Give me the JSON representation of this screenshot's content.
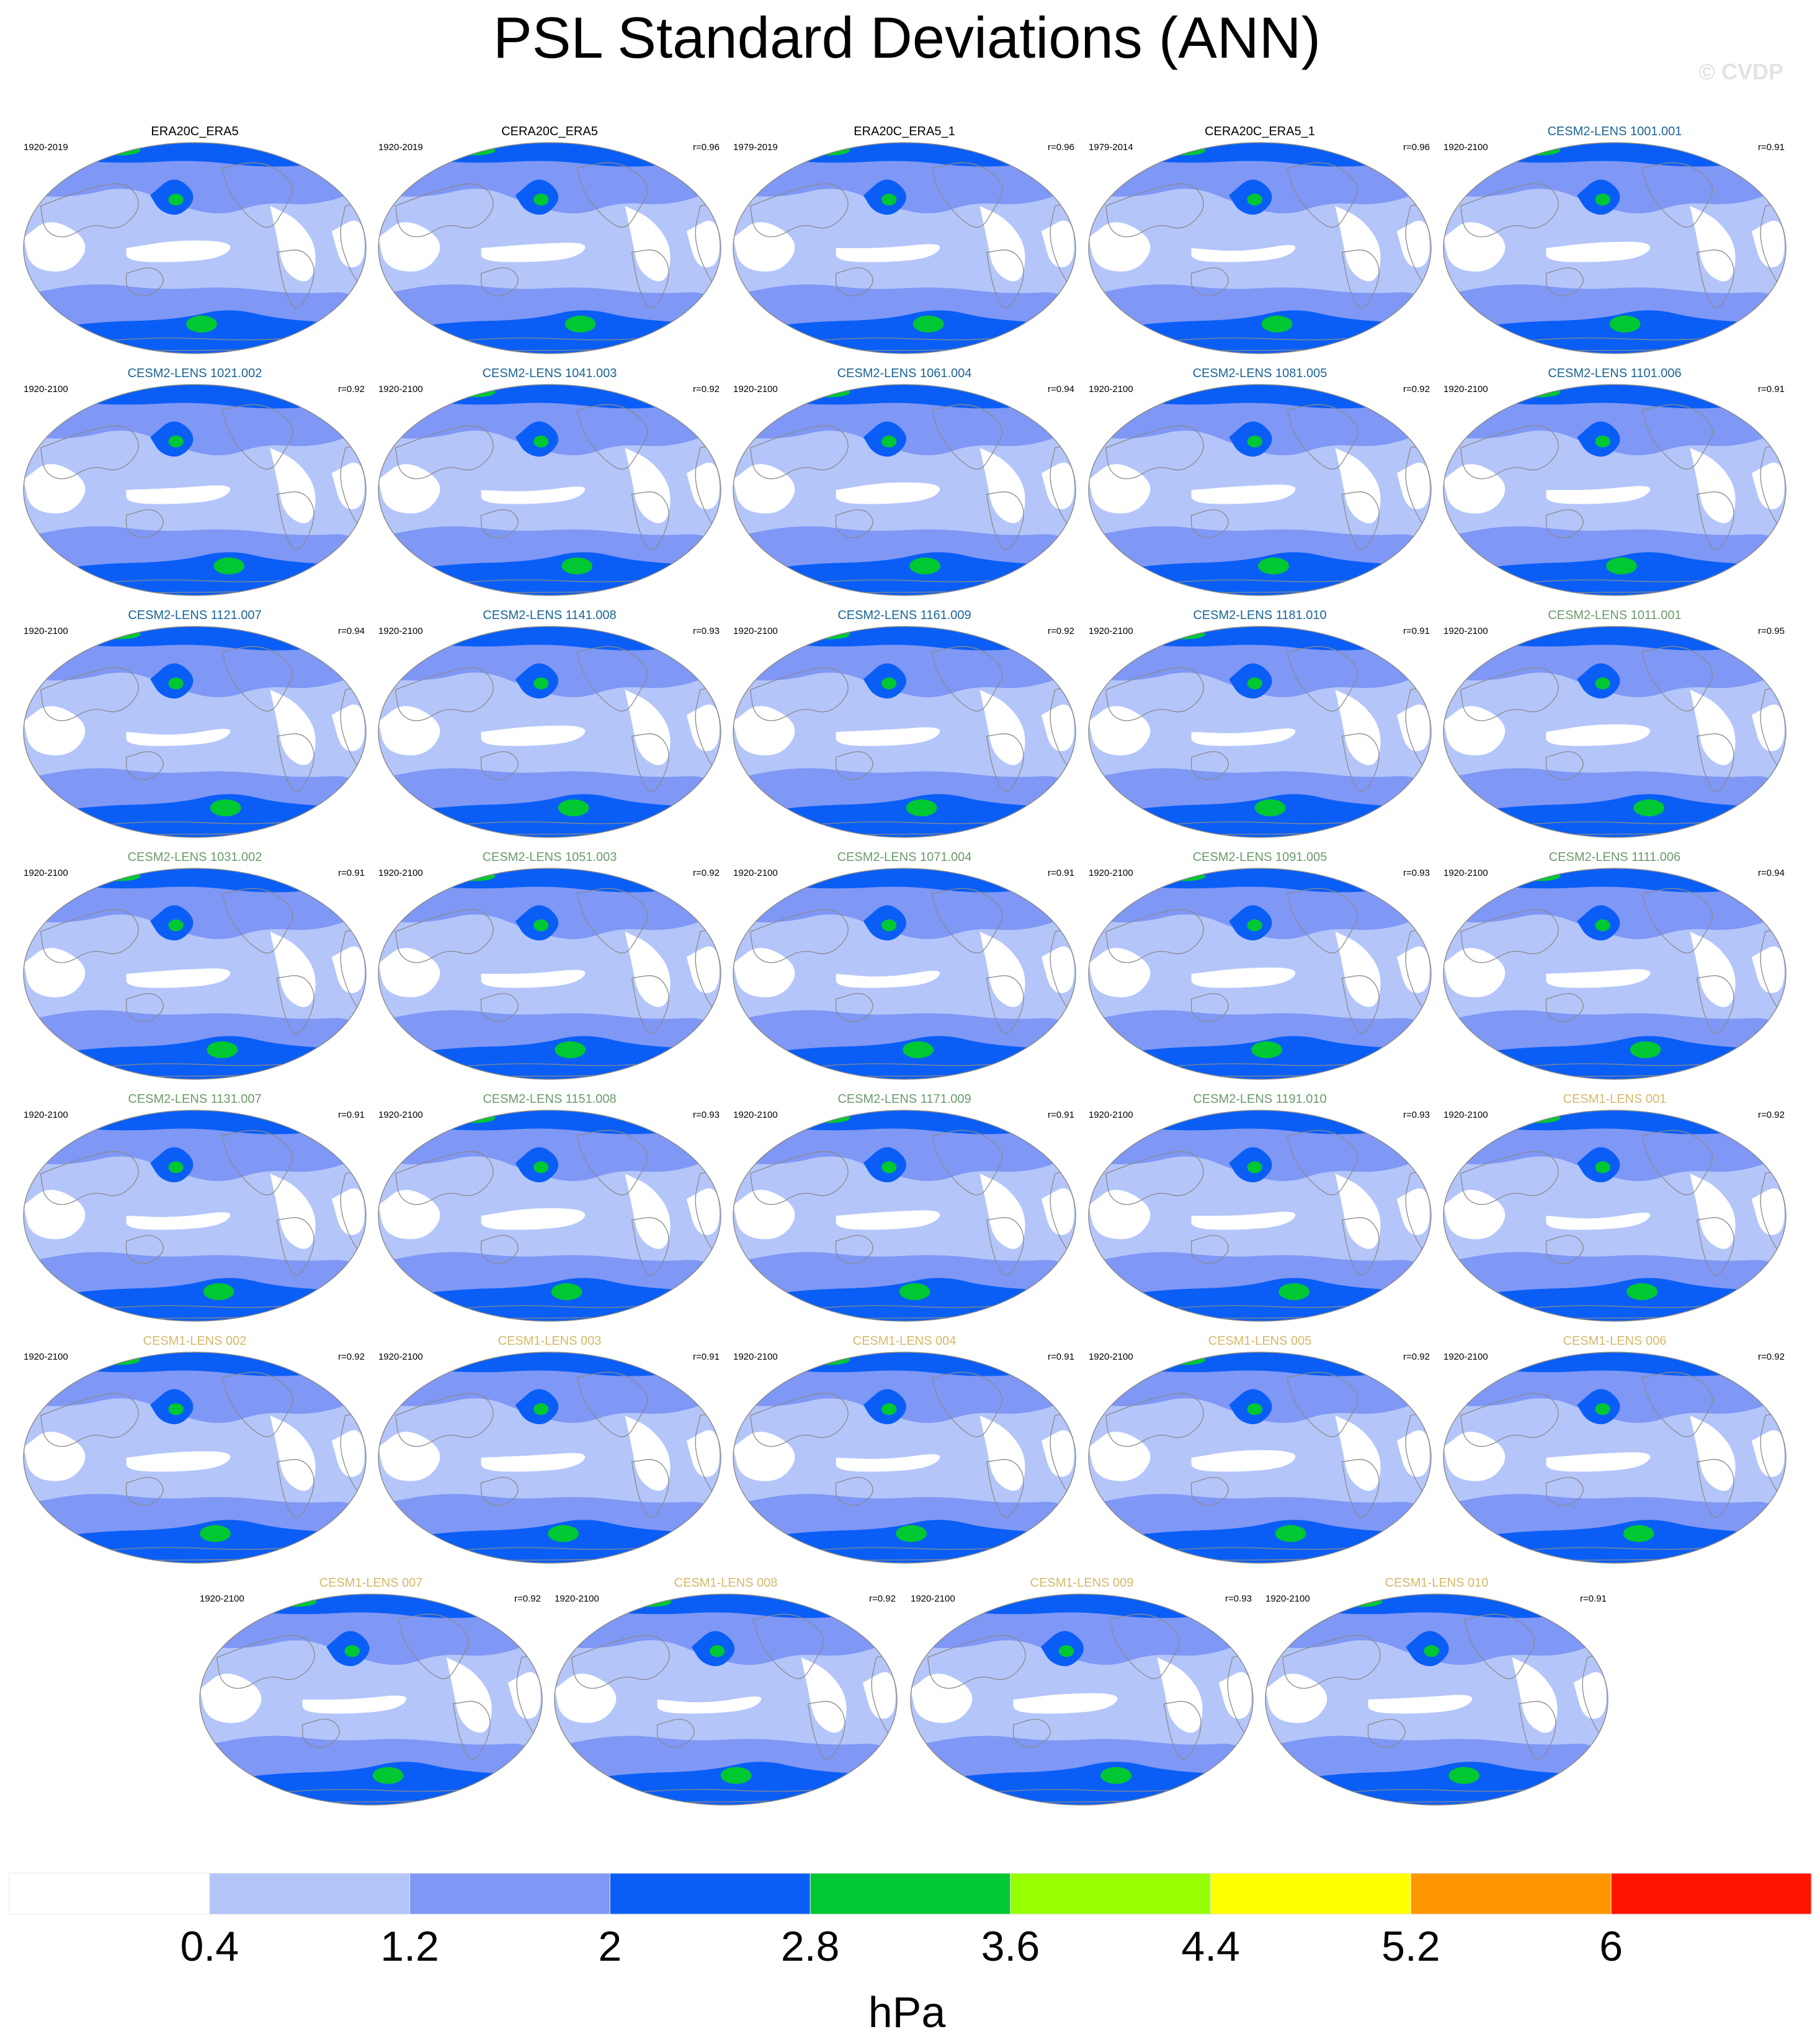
{
  "page": {
    "title": "PSL Standard Deviations (ANN)",
    "watermark": "© CVDP"
  },
  "chart_data": {
    "type": "heatmap",
    "title": "PSL Standard Deviations (ANN)",
    "projection": "robinson-centered-pacific",
    "panels": [
      {
        "title": "ERA20C_ERA5",
        "period": "1920-2019",
        "r": "",
        "title_color": "#000000"
      },
      {
        "title": "CERA20C_ERA5",
        "period": "1920-2019",
        "r": "r=0.96",
        "title_color": "#000000"
      },
      {
        "title": "ERA20C_ERA5_1",
        "period": "1979-2019",
        "r": "r=0.96",
        "title_color": "#000000"
      },
      {
        "title": "CERA20C_ERA5_1",
        "period": "1979-2014",
        "r": "r=0.96",
        "title_color": "#000000"
      },
      {
        "title": "CESM2-LENS 1001.001",
        "period": "1920-2100",
        "r": "r=0.91",
        "title_color": "#1a6496"
      },
      {
        "title": "CESM2-LENS 1021.002",
        "period": "1920-2100",
        "r": "r=0.92",
        "title_color": "#1a6496"
      },
      {
        "title": "CESM2-LENS 1041.003",
        "period": "1920-2100",
        "r": "r=0.92",
        "title_color": "#1a6496"
      },
      {
        "title": "CESM2-LENS 1061.004",
        "period": "1920-2100",
        "r": "r=0.94",
        "title_color": "#1a6496"
      },
      {
        "title": "CESM2-LENS 1081.005",
        "period": "1920-2100",
        "r": "r=0.92",
        "title_color": "#1a6496"
      },
      {
        "title": "CESM2-LENS 1101.006",
        "period": "1920-2100",
        "r": "r=0.91",
        "title_color": "#1a6496"
      },
      {
        "title": "CESM2-LENS 1121.007",
        "period": "1920-2100",
        "r": "r=0.94",
        "title_color": "#1a6496"
      },
      {
        "title": "CESM2-LENS 1141.008",
        "period": "1920-2100",
        "r": "r=0.93",
        "title_color": "#1a6496"
      },
      {
        "title": "CESM2-LENS 1161.009",
        "period": "1920-2100",
        "r": "r=0.92",
        "title_color": "#1a6496"
      },
      {
        "title": "CESM2-LENS 1181.010",
        "period": "1920-2100",
        "r": "r=0.91",
        "title_color": "#1a6496"
      },
      {
        "title": "CESM2-LENS 1011.001",
        "period": "1920-2100",
        "r": "r=0.95",
        "title_color": "#6b9a6b"
      },
      {
        "title": "CESM2-LENS 1031.002",
        "period": "1920-2100",
        "r": "r=0.91",
        "title_color": "#6b9a6b"
      },
      {
        "title": "CESM2-LENS 1051.003",
        "period": "1920-2100",
        "r": "r=0.92",
        "title_color": "#6b9a6b"
      },
      {
        "title": "CESM2-LENS 1071.004",
        "period": "1920-2100",
        "r": "r=0.91",
        "title_color": "#6b9a6b"
      },
      {
        "title": "CESM2-LENS 1091.005",
        "period": "1920-2100",
        "r": "r=0.93",
        "title_color": "#6b9a6b"
      },
      {
        "title": "CESM2-LENS 1111.006",
        "period": "1920-2100",
        "r": "r=0.94",
        "title_color": "#6b9a6b"
      },
      {
        "title": "CESM2-LENS 1131.007",
        "period": "1920-2100",
        "r": "r=0.91",
        "title_color": "#6b9a6b"
      },
      {
        "title": "CESM2-LENS 1151.008",
        "period": "1920-2100",
        "r": "r=0.93",
        "title_color": "#6b9a6b"
      },
      {
        "title": "CESM2-LENS 1171.009",
        "period": "1920-2100",
        "r": "r=0.91",
        "title_color": "#6b9a6b"
      },
      {
        "title": "CESM2-LENS 1191.010",
        "period": "1920-2100",
        "r": "r=0.93",
        "title_color": "#6b9a6b"
      },
      {
        "title": "CESM1-LENS 001",
        "period": "1920-2100",
        "r": "r=0.92",
        "title_color": "#d4b96a"
      },
      {
        "title": "CESM1-LENS 002",
        "period": "1920-2100",
        "r": "r=0.92",
        "title_color": "#d4b96a"
      },
      {
        "title": "CESM1-LENS 003",
        "period": "1920-2100",
        "r": "r=0.91",
        "title_color": "#d4b96a"
      },
      {
        "title": "CESM1-LENS 004",
        "period": "1920-2100",
        "r": "r=0.91",
        "title_color": "#d4b96a"
      },
      {
        "title": "CESM1-LENS 005",
        "period": "1920-2100",
        "r": "r=0.92",
        "title_color": "#d4b96a"
      },
      {
        "title": "CESM1-LENS 006",
        "period": "1920-2100",
        "r": "r=0.92",
        "title_color": "#d4b96a"
      },
      {
        "title": "CESM1-LENS 007",
        "period": "1920-2100",
        "r": "r=0.92",
        "title_color": "#d4b96a"
      },
      {
        "title": "CESM1-LENS 008",
        "period": "1920-2100",
        "r": "r=0.92",
        "title_color": "#d4b96a"
      },
      {
        "title": "CESM1-LENS 009",
        "period": "1920-2100",
        "r": "r=0.93",
        "title_color": "#d4b96a"
      },
      {
        "title": "CESM1-LENS 010",
        "period": "1920-2100",
        "r": "r=0.91",
        "title_color": "#d4b96a"
      }
    ],
    "colorbar": {
      "label": "hPa",
      "levels": [
        "0.4",
        "1.2",
        "2",
        "2.8",
        "3.6",
        "4.4",
        "5.2",
        "6"
      ],
      "colors": [
        "#ffffff",
        "#b4c5fa",
        "#7f97f5",
        "#0a5ef5",
        "#00c832",
        "#96ff00",
        "#ffff00",
        "#ff9600",
        "#ff1400"
      ]
    },
    "colors": {
      "low": "#b4c5fa",
      "mid": "#7f97f5",
      "high": "#0a5ef5",
      "peak": "#00c832",
      "land_outline": "#8a8a8a"
    }
  }
}
